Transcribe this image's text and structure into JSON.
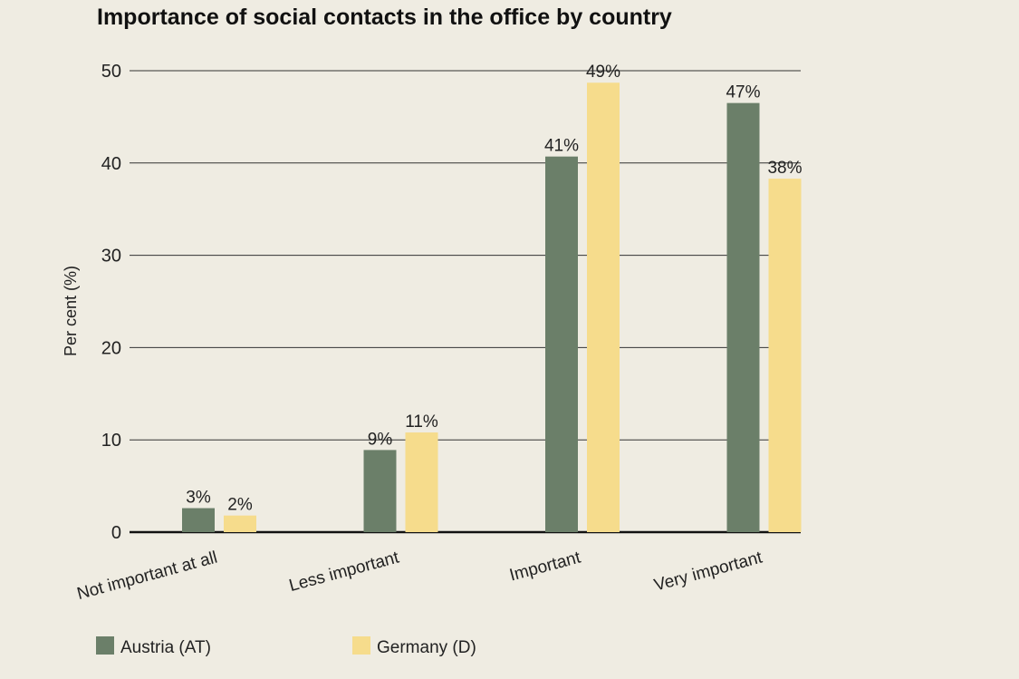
{
  "chart_data": {
    "type": "bar",
    "title": "Importance of social contacts in the office by country",
    "xlabel": "",
    "ylabel": "Per cent (%)",
    "ylim": [
      0,
      50
    ],
    "yticks": [
      0,
      10,
      20,
      30,
      40,
      50
    ],
    "grid": true,
    "legend_position": "bottom-left",
    "categories": [
      "Not important at all",
      "Less important",
      "Important",
      "Very important"
    ],
    "series": [
      {
        "name": "Austria (AT)",
        "color": "#6b7f69",
        "values": [
          2.6,
          8.9,
          40.7,
          46.5
        ],
        "labels": [
          "3%",
          "9%",
          "41%",
          "47%"
        ]
      },
      {
        "name": "Germany (D)",
        "color": "#f6dc8c",
        "values": [
          1.8,
          10.8,
          48.7,
          38.3
        ],
        "labels": [
          "2%",
          "11%",
          "49%",
          "38%"
        ]
      }
    ]
  }
}
